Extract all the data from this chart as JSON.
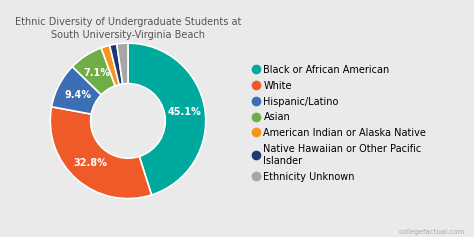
{
  "title": "Ethnic Diversity of Undergraduate Students at\nSouth University-Virginia Beach",
  "legend_labels": [
    "Black or African American",
    "White",
    "Hispanic/Latino",
    "Asian",
    "American Indian or Alaska Native",
    "Native Hawaiian or Other Pacific\nIslander",
    "Ethnicity Unknown"
  ],
  "values": [
    45.1,
    32.8,
    9.4,
    7.1,
    1.8,
    1.5,
    2.3
  ],
  "colors": [
    "#00a99d",
    "#f05a28",
    "#3c6eb4",
    "#70ad47",
    "#f7941d",
    "#1f3770",
    "#a6a6a6"
  ],
  "pct_labels": [
    "45.1%",
    "32.8%",
    "9.4%",
    "7.1%",
    "",
    "",
    ""
  ],
  "background_color": "#eaeaea",
  "title_fontsize": 7,
  "label_fontsize": 7,
  "legend_fontsize": 7,
  "title_color": "#555555",
  "watermark": "collegefactual.com"
}
